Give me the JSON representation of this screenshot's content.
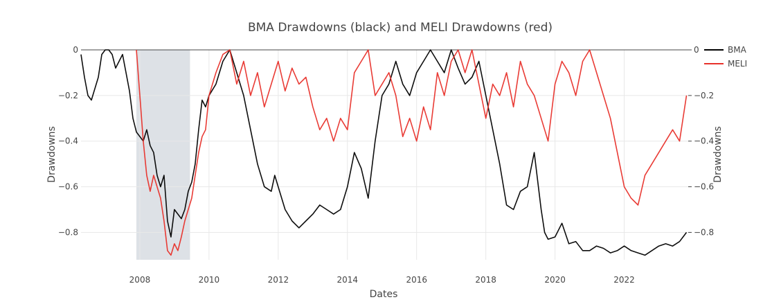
{
  "chart_data": {
    "type": "line",
    "title": "BMA Drawdowns (black) and MELI Drawdowns (red)",
    "xlabel": "Dates",
    "ylabel": "Drawdowns",
    "y2label": "Drawdowns",
    "xlim": [
      2006.3,
      2023.85
    ],
    "ylim": [
      -0.92,
      0.0
    ],
    "y2lim": [
      -0.92,
      0.0
    ],
    "x_ticks": [
      2008,
      2010,
      2012,
      2014,
      2016,
      2018,
      2020,
      2022
    ],
    "y_ticks": [
      0,
      -0.2,
      -0.4,
      -0.6,
      -0.8
    ],
    "y2_ticks": [
      0,
      -0.2,
      -0.4,
      -0.6,
      -0.8
    ],
    "grid": true,
    "legend_position": "top-right",
    "shaded_region": {
      "x0": 2007.9,
      "x1": 2009.45,
      "color": "#dde1e6"
    },
    "zero_line": true,
    "series": [
      {
        "name": "BMA",
        "color": "#000000",
        "axis": "left",
        "x": [
          2006.3,
          2006.4,
          2006.5,
          2006.6,
          2006.8,
          2006.9,
          2007.0,
          2007.1,
          2007.2,
          2007.3,
          2007.4,
          2007.5,
          2007.6,
          2007.7,
          2007.8,
          2007.9,
          2008.0,
          2008.1,
          2008.2,
          2008.3,
          2008.4,
          2008.5,
          2008.6,
          2008.7,
          2008.8,
          2008.9,
          2009.0,
          2009.1,
          2009.2,
          2009.3,
          2009.4,
          2009.5,
          2009.6,
          2009.7,
          2009.8,
          2009.9,
          2010.0,
          2010.2,
          2010.4,
          2010.6,
          2010.8,
          2011.0,
          2011.2,
          2011.4,
          2011.6,
          2011.8,
          2011.9,
          2012.0,
          2012.2,
          2012.4,
          2012.6,
          2012.8,
          2013.0,
          2013.2,
          2013.4,
          2013.6,
          2013.8,
          2014.0,
          2014.2,
          2014.4,
          2014.6,
          2014.8,
          2015.0,
          2015.2,
          2015.4,
          2015.6,
          2015.8,
          2016.0,
          2016.2,
          2016.4,
          2016.6,
          2016.8,
          2017.0,
          2017.2,
          2017.4,
          2017.6,
          2017.8,
          2018.0,
          2018.2,
          2018.4,
          2018.6,
          2018.8,
          2019.0,
          2019.2,
          2019.4,
          2019.6,
          2019.7,
          2019.8,
          2020.0,
          2020.2,
          2020.4,
          2020.6,
          2020.8,
          2021.0,
          2021.2,
          2021.4,
          2021.6,
          2021.8,
          2022.0,
          2022.2,
          2022.4,
          2022.6,
          2022.8,
          2023.0,
          2023.2,
          2023.4,
          2023.6,
          2023.7,
          2023.8
        ],
        "values": [
          -0.02,
          -0.12,
          -0.2,
          -0.22,
          -0.12,
          -0.02,
          0.0,
          0.0,
          -0.02,
          -0.08,
          -0.05,
          -0.02,
          -0.1,
          -0.18,
          -0.3,
          -0.36,
          -0.38,
          -0.4,
          -0.35,
          -0.42,
          -0.45,
          -0.55,
          -0.6,
          -0.55,
          -0.75,
          -0.82,
          -0.7,
          -0.72,
          -0.74,
          -0.7,
          -0.62,
          -0.58,
          -0.5,
          -0.35,
          -0.22,
          -0.25,
          -0.2,
          -0.15,
          -0.05,
          0.0,
          -0.1,
          -0.2,
          -0.35,
          -0.5,
          -0.6,
          -0.62,
          -0.55,
          -0.6,
          -0.7,
          -0.75,
          -0.78,
          -0.75,
          -0.72,
          -0.68,
          -0.7,
          -0.72,
          -0.7,
          -0.6,
          -0.45,
          -0.52,
          -0.65,
          -0.4,
          -0.2,
          -0.15,
          -0.05,
          -0.15,
          -0.2,
          -0.1,
          -0.05,
          0.0,
          -0.05,
          -0.1,
          0.0,
          -0.08,
          -0.15,
          -0.12,
          -0.05,
          -0.2,
          -0.35,
          -0.5,
          -0.68,
          -0.7,
          -0.62,
          -0.6,
          -0.45,
          -0.7,
          -0.8,
          -0.83,
          -0.82,
          -0.76,
          -0.85,
          -0.84,
          -0.88,
          -0.88,
          -0.86,
          -0.87,
          -0.89,
          -0.88,
          -0.86,
          -0.88,
          -0.89,
          -0.9,
          -0.88,
          -0.86,
          -0.85,
          -0.86,
          -0.84,
          -0.82,
          -0.8
        ],
        "label": "BMA"
      },
      {
        "name": "MELI",
        "color": "#e8302a",
        "axis": "right",
        "x": [
          2007.9,
          2008.0,
          2008.1,
          2008.2,
          2008.3,
          2008.4,
          2008.5,
          2008.6,
          2008.7,
          2008.8,
          2008.9,
          2009.0,
          2009.1,
          2009.2,
          2009.3,
          2009.4,
          2009.5,
          2009.6,
          2009.7,
          2009.8,
          2009.9,
          2010.0,
          2010.2,
          2010.4,
          2010.6,
          2010.8,
          2011.0,
          2011.2,
          2011.4,
          2011.6,
          2011.8,
          2012.0,
          2012.2,
          2012.4,
          2012.6,
          2012.8,
          2013.0,
          2013.2,
          2013.4,
          2013.6,
          2013.8,
          2014.0,
          2014.2,
          2014.4,
          2014.6,
          2014.8,
          2015.0,
          2015.2,
          2015.4,
          2015.6,
          2015.8,
          2016.0,
          2016.2,
          2016.4,
          2016.6,
          2016.8,
          2017.0,
          2017.2,
          2017.4,
          2017.6,
          2017.8,
          2018.0,
          2018.2,
          2018.4,
          2018.6,
          2018.8,
          2019.0,
          2019.2,
          2019.4,
          2019.6,
          2019.8,
          2020.0,
          2020.2,
          2020.4,
          2020.6,
          2020.8,
          2021.0,
          2021.2,
          2021.4,
          2021.6,
          2021.8,
          2022.0,
          2022.2,
          2022.4,
          2022.6,
          2022.8,
          2023.0,
          2023.2,
          2023.4,
          2023.6,
          2023.7,
          2023.8
        ],
        "values": [
          0.0,
          -0.2,
          -0.4,
          -0.55,
          -0.62,
          -0.55,
          -0.6,
          -0.65,
          -0.75,
          -0.88,
          -0.9,
          -0.85,
          -0.88,
          -0.82,
          -0.75,
          -0.7,
          -0.65,
          -0.55,
          -0.45,
          -0.38,
          -0.35,
          -0.2,
          -0.1,
          -0.02,
          0.0,
          -0.15,
          -0.05,
          -0.2,
          -0.1,
          -0.25,
          -0.15,
          -0.05,
          -0.18,
          -0.08,
          -0.15,
          -0.12,
          -0.25,
          -0.35,
          -0.3,
          -0.4,
          -0.3,
          -0.35,
          -0.1,
          -0.05,
          0.0,
          -0.2,
          -0.15,
          -0.1,
          -0.2,
          -0.38,
          -0.3,
          -0.4,
          -0.25,
          -0.35,
          -0.1,
          -0.2,
          -0.05,
          0.0,
          -0.1,
          0.0,
          -0.15,
          -0.3,
          -0.15,
          -0.2,
          -0.1,
          -0.25,
          -0.05,
          -0.15,
          -0.2,
          -0.3,
          -0.4,
          -0.15,
          -0.05,
          -0.1,
          -0.2,
          -0.05,
          0.0,
          -0.1,
          -0.2,
          -0.3,
          -0.45,
          -0.6,
          -0.65,
          -0.68,
          -0.55,
          -0.5,
          -0.45,
          -0.4,
          -0.35,
          -0.4,
          -0.3,
          -0.2
        ],
        "label": "MELI"
      }
    ]
  }
}
